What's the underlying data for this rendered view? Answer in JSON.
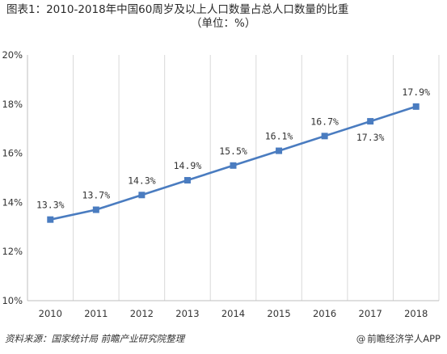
{
  "header": {
    "title_line1": "图表1：2010-2018年中国60周岁及以上人口数量占总人口数量的比重",
    "title_line2": "（单位：%）"
  },
  "footer": {
    "source": "资料来源：国家统计局 前瞻产业研究院整理",
    "brand_at": "@",
    "brand": "前瞻经济学人APP"
  },
  "chart_data": {
    "type": "line",
    "title": "图表1：2010-2018年中国60周岁及以上人口数量占总人口数量的比重（单位：%）",
    "categories": [
      "2010",
      "2011",
      "2012",
      "2013",
      "2014",
      "2015",
      "2016",
      "2017",
      "2018"
    ],
    "series": [
      {
        "values": [
          13.3,
          13.7,
          14.3,
          14.9,
          15.5,
          16.1,
          16.7,
          17.3,
          17.9
        ],
        "labels": [
          "13.3%",
          "13.7%",
          "14.3%",
          "14.9%",
          "15.5%",
          "16.1%",
          "16.7%",
          "17.3%",
          "17.9%"
        ]
      }
    ],
    "yticks": [
      "10%",
      "12%",
      "14%",
      "16%",
      "18%",
      "20%"
    ],
    "ytick_values": [
      10,
      12,
      14,
      16,
      18,
      20
    ],
    "ylim": [
      10,
      20
    ],
    "xlabel": "",
    "ylabel": "",
    "grid": "vertical",
    "legend": "none",
    "line_color": "#4a7cc0",
    "marker": "square"
  }
}
